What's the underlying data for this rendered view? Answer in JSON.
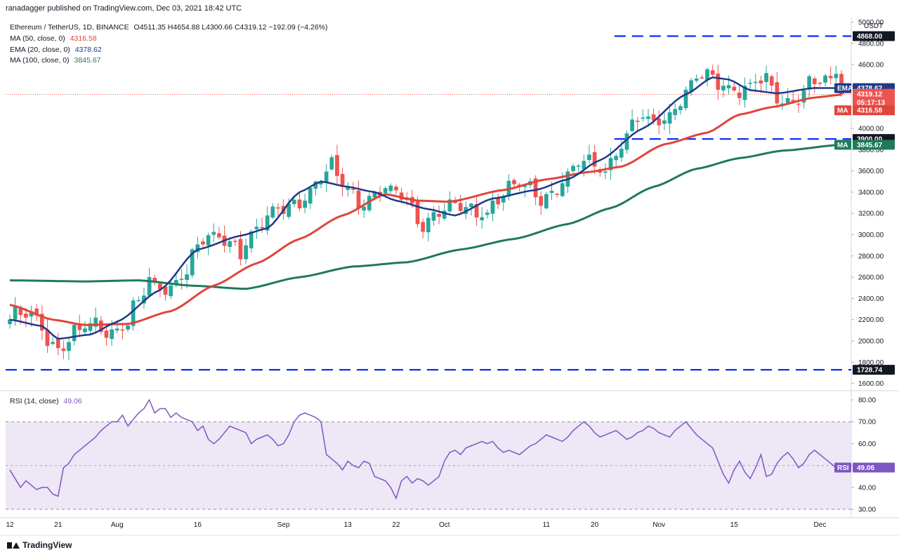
{
  "header": {
    "published": "ranadagger published on TradingView.com, Dec 03, 2021 18:42 UTC"
  },
  "legend": {
    "symbol": "Ethereum / TetherUS, 1D, BINANCE",
    "ohlc": "O4511.35  H4654.88  L4300.66  C4319.12  −192.09 (−4.26%)",
    "ma50_label": "MA (50, close, 0)",
    "ma50_value": "4316.58",
    "ema20_label": "EMA (20, close, 0)",
    "ema20_value": "4378.62",
    "ma100_label": "MA (100, close, 0)",
    "ma100_value": "3845.67"
  },
  "rsi_legend": {
    "label": "RSI (14, close)",
    "value": "49.06"
  },
  "brand": {
    "name": "TradingView"
  },
  "colors": {
    "up": "#26a69a",
    "down": "#ef5350",
    "ema": "#1e3a8a",
    "ma50": "#e0453b",
    "ma100": "#1f7a5c",
    "rsi": "#7e57c2",
    "hline": "#0c2ff0",
    "rsi_band": "#ede7f6"
  },
  "chart_data": [
    {
      "type": "candlestick",
      "title": "Ethereum / TetherUS, 1D, BINANCE",
      "ylim": [
        1540,
        5000
      ],
      "currency": "USDT",
      "y_ticks": [
        "5000.00",
        "4800.00",
        "4600.00",
        "4400.00",
        "4200.00",
        "4000.00",
        "3800.00",
        "3600.00",
        "3400.00",
        "3200.00",
        "3000.00",
        "2800.00",
        "2600.00",
        "2400.00",
        "2200.00",
        "2000.00",
        "1800.00",
        "1600.00"
      ],
      "x_ticks": [
        "12",
        "21",
        "Aug",
        "16",
        "Sep",
        "13",
        "22",
        "Oct",
        "11",
        "20",
        "Nov",
        "15",
        "Dec"
      ],
      "x_tick_days": [
        0,
        9,
        20,
        35,
        51,
        63,
        72,
        81,
        100,
        109,
        121,
        135,
        151
      ],
      "n_days": 156,
      "horizontal_levels": [
        {
          "value": 4868.0,
          "label": "4868.00",
          "from_day": 114
        },
        {
          "value": 3900.0,
          "label": "3900.00",
          "from_day": 114
        },
        {
          "value": 1728.74,
          "label": "1728.74",
          "from_day": 0
        }
      ],
      "price_tags": [
        {
          "name": "EMA",
          "value": "4378.62",
          "y": 4378.62
        },
        {
          "name": "last",
          "value": "4319.12",
          "sub": "05:17:13",
          "y": 4319.12
        },
        {
          "name": "MA",
          "value": "4316.58",
          "y": 4170
        },
        {
          "name": "MA",
          "value": "3845.67",
          "y": 3845.67
        }
      ],
      "last_close": 4319.12,
      "series": [
        {
          "name": "EMA (20)",
          "anchors": [
            [
              0,
              2200
            ],
            [
              6,
              2140
            ],
            [
              9,
              2020
            ],
            [
              15,
              2060
            ],
            [
              20,
              2180
            ],
            [
              28,
              2480
            ],
            [
              35,
              2860
            ],
            [
              43,
              2990
            ],
            [
              48,
              3060
            ],
            [
              54,
              3400
            ],
            [
              58,
              3500
            ],
            [
              63,
              3450
            ],
            [
              68,
              3400
            ],
            [
              72,
              3320
            ],
            [
              78,
              3240
            ],
            [
              83,
              3180
            ],
            [
              90,
              3340
            ],
            [
              98,
              3420
            ],
            [
              104,
              3520
            ],
            [
              110,
              3700
            ],
            [
              118,
              4000
            ],
            [
              126,
              4320
            ],
            [
              131,
              4480
            ],
            [
              134,
              4460
            ],
            [
              138,
              4360
            ],
            [
              143,
              4330
            ],
            [
              150,
              4380
            ],
            [
              155,
              4379
            ]
          ]
        },
        {
          "name": "MA (50)",
          "anchors": [
            [
              0,
              2340
            ],
            [
              8,
              2200
            ],
            [
              14,
              2150
            ],
            [
              22,
              2160
            ],
            [
              30,
              2280
            ],
            [
              38,
              2520
            ],
            [
              46,
              2730
            ],
            [
              54,
              2960
            ],
            [
              62,
              3180
            ],
            [
              70,
              3380
            ],
            [
              76,
              3320
            ],
            [
              82,
              3310
            ],
            [
              92,
              3420
            ],
            [
              100,
              3520
            ],
            [
              108,
              3590
            ],
            [
              114,
              3640
            ],
            [
              122,
              3850
            ],
            [
              130,
              3960
            ],
            [
              136,
              4130
            ],
            [
              142,
              4200
            ],
            [
              150,
              4290
            ],
            [
              155,
              4317
            ]
          ]
        },
        {
          "name": "MA (100)",
          "anchors": [
            [
              0,
              2570
            ],
            [
              14,
              2560
            ],
            [
              24,
              2570
            ],
            [
              34,
              2520
            ],
            [
              44,
              2490
            ],
            [
              54,
              2600
            ],
            [
              64,
              2700
            ],
            [
              74,
              2740
            ],
            [
              84,
              2860
            ],
            [
              94,
              2960
            ],
            [
              104,
              3100
            ],
            [
              112,
              3250
            ],
            [
              120,
              3450
            ],
            [
              128,
              3620
            ],
            [
              136,
              3720
            ],
            [
              144,
              3790
            ],
            [
              155,
              3846
            ]
          ]
        }
      ]
    },
    {
      "type": "line",
      "title": "RSI (14, close)",
      "ylim": [
        25,
        85
      ],
      "y_ticks": [
        "80.00",
        "70.00",
        "60.00",
        "50.00",
        "40.00",
        "30.00"
      ],
      "bands": {
        "upper": 70,
        "middle": 50,
        "lower": 30
      },
      "last_value": 49.06,
      "series": [
        {
          "name": "RSI (14)",
          "values": [
            48,
            44,
            40,
            43,
            41,
            39,
            40,
            40,
            37,
            36,
            49,
            51,
            55,
            57,
            59,
            61,
            63,
            66,
            68,
            70,
            70,
            73,
            68,
            71,
            74,
            76,
            80,
            74,
            76,
            76,
            72,
            74,
            72,
            71,
            70,
            66,
            68,
            62,
            60,
            62,
            65,
            68,
            67,
            66,
            65,
            60,
            62,
            63,
            64,
            62,
            59,
            60,
            64,
            70,
            73,
            74,
            73,
            72,
            70,
            55,
            53,
            51,
            48,
            52,
            50,
            49,
            52,
            51,
            45,
            44,
            43,
            40,
            35,
            43,
            45,
            42,
            44,
            43,
            41,
            43,
            45,
            52,
            56,
            57,
            55,
            58,
            59,
            60,
            61,
            60,
            61,
            58,
            56,
            57,
            56,
            55,
            57,
            59,
            60,
            62,
            64,
            63,
            62,
            61,
            63,
            66,
            68,
            70,
            68,
            65,
            63,
            64,
            65,
            66,
            64,
            62,
            63,
            65,
            66,
            68,
            67,
            65,
            64,
            63,
            66,
            68,
            70,
            67,
            64,
            62,
            60,
            58,
            52,
            46,
            42,
            48,
            52,
            47,
            44,
            49,
            55,
            45,
            46,
            51,
            54,
            56,
            53,
            49,
            51,
            55,
            57,
            55,
            53,
            51,
            49,
            49
          ]
        }
      ]
    }
  ]
}
